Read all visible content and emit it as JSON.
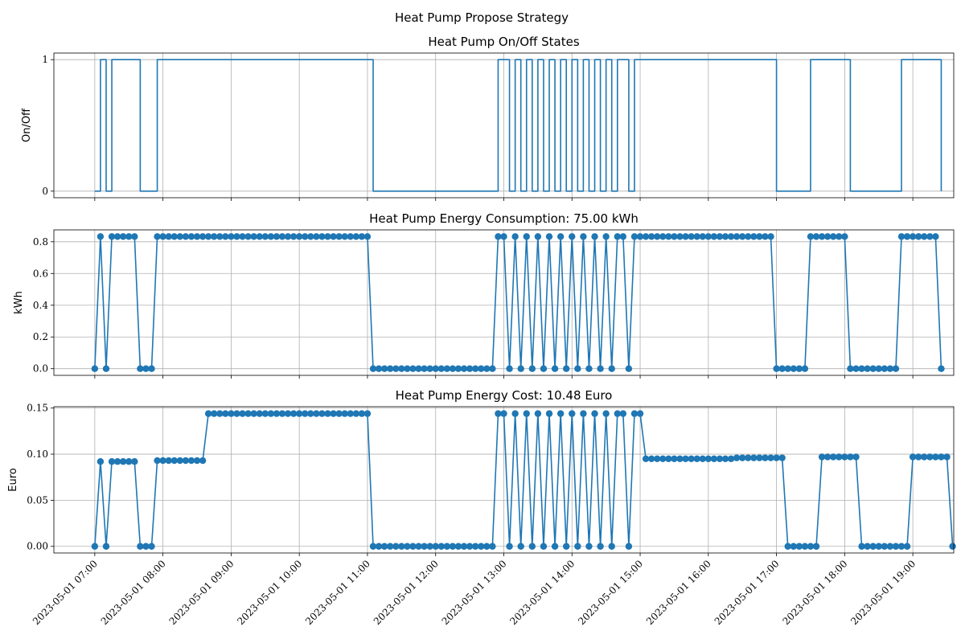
{
  "figure": {
    "suptitle": "Heat Pump Propose Strategy"
  },
  "colors": {
    "series": "#1f77b4",
    "grid": "#b0b0b0",
    "axis": "#000000"
  },
  "chart_data": [
    {
      "type": "line",
      "title": "Heat Pump On/Off States",
      "xlabel": "",
      "ylabel": "On/Off",
      "drawstyle": "steps-post",
      "markers": false,
      "grid": true,
      "ylim": [
        -0.05,
        1.05
      ],
      "yticks": [
        0,
        1
      ],
      "ytick_labels": [
        "0",
        "1"
      ],
      "series": [
        {
          "values": [
            0,
            1,
            0,
            1,
            1,
            1,
            1,
            1,
            0,
            0,
            0,
            1,
            1,
            1,
            1,
            1,
            1,
            1,
            1,
            1,
            1,
            1,
            1,
            1,
            1,
            1,
            1,
            1,
            1,
            1,
            1,
            1,
            1,
            1,
            1,
            1,
            1,
            1,
            1,
            1,
            1,
            1,
            1,
            1,
            1,
            1,
            1,
            1,
            1,
            0,
            0,
            0,
            0,
            0,
            0,
            0,
            0,
            0,
            0,
            0,
            0,
            0,
            0,
            0,
            0,
            0,
            0,
            0,
            0,
            0,
            0,
            1,
            1,
            0,
            1,
            0,
            1,
            0,
            1,
            0,
            1,
            0,
            1,
            0,
            1,
            0,
            1,
            0,
            1,
            0,
            1,
            0,
            1,
            1,
            0,
            1,
            1,
            1,
            1,
            1,
            1,
            1,
            1,
            1,
            1,
            1,
            1,
            1,
            1,
            1,
            1,
            1,
            1,
            1,
            1,
            1,
            1,
            1,
            1,
            1,
            0,
            0,
            0,
            0,
            0,
            0,
            1,
            1,
            1,
            1,
            1,
            1,
            1,
            0,
            0,
            0,
            0,
            0,
            0,
            0,
            0,
            0,
            1,
            1,
            1,
            1,
            1,
            1,
            1,
            0
          ]
        }
      ]
    },
    {
      "type": "line",
      "title": "Heat Pump Energy Consumption: 75.00 kWh",
      "xlabel": "",
      "ylabel": "kWh",
      "markers": true,
      "grid": true,
      "ylim": [
        -0.042,
        0.875
      ],
      "yticks": [
        0,
        0.2,
        0.4,
        0.6,
        0.8
      ],
      "ytick_labels": [
        "0.0",
        "0.2",
        "0.4",
        "0.6",
        "0.8"
      ],
      "series": [
        {
          "values": [
            0,
            0.833,
            0,
            0.833,
            0.833,
            0.833,
            0.833,
            0.833,
            0,
            0,
            0,
            0.833,
            0.833,
            0.833,
            0.833,
            0.833,
            0.833,
            0.833,
            0.833,
            0.833,
            0.833,
            0.833,
            0.833,
            0.833,
            0.833,
            0.833,
            0.833,
            0.833,
            0.833,
            0.833,
            0.833,
            0.833,
            0.833,
            0.833,
            0.833,
            0.833,
            0.833,
            0.833,
            0.833,
            0.833,
            0.833,
            0.833,
            0.833,
            0.833,
            0.833,
            0.833,
            0.833,
            0.833,
            0.833,
            0,
            0,
            0,
            0,
            0,
            0,
            0,
            0,
            0,
            0,
            0,
            0,
            0,
            0,
            0,
            0,
            0,
            0,
            0,
            0,
            0,
            0,
            0.833,
            0.833,
            0,
            0.833,
            0,
            0.833,
            0,
            0.833,
            0,
            0.833,
            0,
            0.833,
            0,
            0.833,
            0,
            0.833,
            0,
            0.833,
            0,
            0.833,
            0,
            0.833,
            0.833,
            0,
            0.833,
            0.833,
            0.833,
            0.833,
            0.833,
            0.833,
            0.833,
            0.833,
            0.833,
            0.833,
            0.833,
            0.833,
            0.833,
            0.833,
            0.833,
            0.833,
            0.833,
            0.833,
            0.833,
            0.833,
            0.833,
            0.833,
            0.833,
            0.833,
            0.833,
            0,
            0,
            0,
            0,
            0,
            0,
            0.833,
            0.833,
            0.833,
            0.833,
            0.833,
            0.833,
            0.833,
            0,
            0,
            0,
            0,
            0,
            0,
            0,
            0,
            0,
            0.833,
            0.833,
            0.833,
            0.833,
            0.833,
            0.833,
            0.833,
            0
          ]
        }
      ]
    },
    {
      "type": "line",
      "title": "Heat Pump Energy Cost: 10.48 Euro",
      "xlabel": "",
      "ylabel": "Euro",
      "markers": true,
      "grid": true,
      "ylim": [
        -0.0072,
        0.1515
      ],
      "yticks": [
        0,
        0.05,
        0.1,
        0.15
      ],
      "ytick_labels": [
        "0.00",
        "0.05",
        "0.10",
        "0.15"
      ],
      "series": [
        {
          "values": [
            0,
            0.092,
            0,
            0.092,
            0.092,
            0.092,
            0.092,
            0.092,
            0,
            0,
            0,
            0.093,
            0.093,
            0.093,
            0.093,
            0.093,
            0.093,
            0.093,
            0.093,
            0.093,
            0.144,
            0.144,
            0.144,
            0.144,
            0.144,
            0.144,
            0.144,
            0.144,
            0.144,
            0.144,
            0.144,
            0.144,
            0.144,
            0.144,
            0.144,
            0.144,
            0.144,
            0.144,
            0.144,
            0.144,
            0.144,
            0.144,
            0.144,
            0.144,
            0.144,
            0.144,
            0.144,
            0.144,
            0.144,
            0,
            0,
            0,
            0,
            0,
            0,
            0,
            0,
            0,
            0,
            0,
            0,
            0,
            0,
            0,
            0,
            0,
            0,
            0,
            0,
            0,
            0,
            0.144,
            0.144,
            0,
            0.144,
            0,
            0.144,
            0,
            0.144,
            0,
            0.144,
            0,
            0.144,
            0,
            0.144,
            0,
            0.144,
            0,
            0.144,
            0,
            0.144,
            0,
            0.144,
            0.144,
            0,
            0.144,
            0.144,
            0.095,
            0.095,
            0.095,
            0.095,
            0.095,
            0.095,
            0.095,
            0.095,
            0.095,
            0.095,
            0.095,
            0.095,
            0.095,
            0.095,
            0.095,
            0.095,
            0.096,
            0.096,
            0.096,
            0.096,
            0.096,
            0.096,
            0.096,
            0.096,
            0.096,
            0,
            0,
            0,
            0,
            0,
            0,
            0.097,
            0.097,
            0.097,
            0.097,
            0.097,
            0.097,
            0.097,
            0,
            0,
            0,
            0,
            0,
            0,
            0,
            0,
            0,
            0.097,
            0.097,
            0.097,
            0.097,
            0.097,
            0.097,
            0.097,
            0
          ]
        }
      ]
    }
  ],
  "x_axis": {
    "start": "2023-05-01 07:00",
    "end": "2023-05-01 19:00",
    "step_minutes": 5,
    "xlim_minutes": [
      -36,
      756
    ],
    "tick_minutes": [
      0,
      60,
      120,
      180,
      240,
      300,
      360,
      420,
      480,
      540,
      600,
      660,
      720
    ],
    "tick_labels": [
      "2023-05-01 07:00",
      "2023-05-01 08:00",
      "2023-05-01 09:00",
      "2023-05-01 10:00",
      "2023-05-01 11:00",
      "2023-05-01 12:00",
      "2023-05-01 13:00",
      "2023-05-01 14:00",
      "2023-05-01 15:00",
      "2023-05-01 16:00",
      "2023-05-01 17:00",
      "2023-05-01 18:00",
      "2023-05-01 19:00"
    ]
  }
}
